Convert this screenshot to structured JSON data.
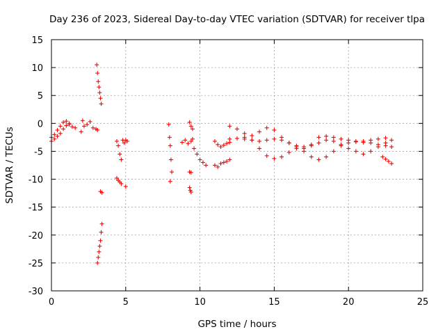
{
  "chart_data": {
    "type": "scatter",
    "title": "Day 236 of 2023, Sidereal Day-to-day VTEC variation (SDTVAR) for receiver tlpa",
    "xlabel": "GPS time / hours",
    "ylabel": "SDTVAR / TECUs",
    "xlim": [
      0,
      25
    ],
    "ylim": [
      -30,
      15
    ],
    "xticks": [
      0,
      5,
      10,
      15,
      20,
      25
    ],
    "yticks": [
      -30,
      -25,
      -20,
      -15,
      -10,
      -5,
      0,
      5,
      10,
      15
    ],
    "grid": true,
    "marker": "+",
    "color": "#ff0000",
    "series": [
      {
        "name": "SDTVAR",
        "segments": [
          {
            "x": [
              0.0,
              0.2,
              0.4,
              0.6,
              0.8,
              1.0,
              1.2,
              1.4,
              1.6
            ],
            "y": [
              -2.5,
              -2.0,
              -1.2,
              -0.5,
              0.2,
              0.4,
              0.0,
              -0.6,
              -0.8
            ]
          },
          {
            "x": [
              0.0,
              0.2,
              0.4,
              0.6,
              0.8,
              1.0,
              1.2
            ],
            "y": [
              -3.2,
              -2.8,
              -2.3,
              -1.8,
              -1.0,
              -0.4,
              -0.2
            ]
          },
          {
            "x": [
              2.0,
              2.1,
              2.2,
              2.4,
              2.6,
              2.8,
              3.0,
              3.1
            ],
            "y": [
              -1.5,
              0.5,
              -0.5,
              -0.2,
              0.3,
              -0.8,
              -1.0,
              -1.2
            ]
          },
          {
            "x": [
              3.05,
              3.1,
              3.15,
              3.2,
              3.25,
              3.3,
              3.35
            ],
            "y": [
              10.5,
              9.0,
              7.5,
              6.5,
              5.5,
              4.5,
              3.5
            ]
          },
          {
            "x": [
              3.1,
              3.15,
              3.2,
              3.25,
              3.3,
              3.35,
              3.4
            ],
            "y": [
              -25.0,
              -24.0,
              -23.0,
              -22.0,
              -21.0,
              -19.5,
              -18.0
            ]
          },
          {
            "x": [
              3.3,
              3.4
            ],
            "y": [
              -12.2,
              -12.4
            ]
          },
          {
            "x": [
              4.4,
              4.5,
              4.6,
              4.7,
              4.8
            ],
            "y": [
              -3.2,
              -4.0,
              -5.5,
              -6.5,
              -3.0
            ]
          },
          {
            "x": [
              4.4,
              4.5,
              4.6,
              4.7
            ],
            "y": [
              -9.8,
              -10.2,
              -10.5,
              -10.8
            ]
          },
          {
            "x": [
              4.9,
              5.0,
              5.1
            ],
            "y": [
              -3.5,
              -3.0,
              -3.2
            ]
          },
          {
            "x": [
              5.0
            ],
            "y": [
              -11.3
            ]
          },
          {
            "x": [
              7.9,
              7.95,
              8.0,
              8.05,
              8.1
            ],
            "y": [
              -0.2,
              -2.5,
              -4.0,
              -6.5,
              -8.7
            ]
          },
          {
            "x": [
              8.0
            ],
            "y": [
              -10.4
            ]
          },
          {
            "x": [
              8.8,
              9.0,
              9.2,
              9.4,
              9.5
            ],
            "y": [
              -3.4,
              -3.0,
              -3.6,
              -3.2,
              -2.8
            ]
          },
          {
            "x": [
              9.3,
              9.4,
              9.5
            ],
            "y": [
              0.2,
              -0.5,
              -1.0
            ]
          },
          {
            "x": [
              9.3,
              9.4
            ],
            "y": [
              -8.7,
              -8.8
            ]
          },
          {
            "x": [
              9.3,
              9.35,
              9.4
            ],
            "y": [
              -11.5,
              -12.0,
              -12.3
            ]
          },
          {
            "x": [
              9.6,
              9.8,
              10.0,
              10.2,
              10.4
            ],
            "y": [
              -4.5,
              -5.5,
              -6.5,
              -7.0,
              -7.5
            ]
          },
          {
            "x": [
              11.0,
              11.2,
              11.4,
              11.6,
              11.8,
              12.0
            ],
            "y": [
              -3.2,
              -3.8,
              -4.2,
              -3.9,
              -3.6,
              -3.4
            ]
          },
          {
            "x": [
              11.0,
              11.2,
              11.4,
              11.6,
              11.8,
              12.0
            ],
            "y": [
              -7.5,
              -7.8,
              -7.2,
              -7.0,
              -6.8,
              -6.5
            ]
          },
          {
            "x": [
              12.0,
              12.5,
              13.0,
              13.5,
              14.0,
              14.5,
              15.0,
              15.5,
              16.0,
              16.5,
              17.0,
              17.5,
              18.0,
              18.5,
              19.0,
              19.5,
              20.0,
              20.5,
              21.0,
              21.5,
              22.0,
              22.5,
              22.9
            ],
            "y": [
              -0.5,
              -1.0,
              -1.8,
              -2.2,
              -1.5,
              -0.8,
              -1.2,
              -2.5,
              -3.5,
              -4.2,
              -4.5,
              -4.0,
              -3.5,
              -3.0,
              -3.2,
              -3.8,
              -4.5,
              -5.0,
              -5.5,
              -5.0,
              -4.2,
              -3.5,
              -3.0
            ]
          },
          {
            "x": [
              12.0,
              12.5,
              13.0,
              13.5,
              14.0,
              14.5,
              15.0,
              15.5,
              16.0,
              16.5,
              17.0,
              17.5,
              18.0,
              18.5,
              19.0,
              19.5,
              20.0,
              20.5,
              21.0,
              21.5,
              22.0,
              22.5,
              22.9
            ],
            "y": [
              -2.8,
              -2.7,
              -2.8,
              -3.0,
              -4.5,
              -5.8,
              -6.3,
              -6.0,
              -5.2,
              -4.5,
              -4.2,
              -3.8,
              -2.5,
              -2.3,
              -2.5,
              -2.8,
              -3.0,
              -3.2,
              -3.4,
              -3.5,
              -3.8,
              -4.0,
              -4.2
            ]
          },
          {
            "x": [
              13.0,
              13.5,
              14.0,
              14.5,
              15.0,
              15.5,
              16.0,
              16.5,
              17.0,
              17.5,
              18.0,
              18.5,
              19.0,
              19.5,
              20.0,
              20.5,
              21.0,
              21.5,
              22.0,
              22.5
            ],
            "y": [
              -2.5,
              -3.0,
              -3.2,
              -3.0,
              -2.8,
              -3.0,
              -3.5,
              -4.0,
              -5.0,
              -6.0,
              -6.5,
              -6.0,
              -5.0,
              -4.0,
              -3.5,
              -3.3,
              -3.2,
              -3.0,
              -2.8,
              -2.6
            ]
          },
          {
            "x": [
              22.3,
              22.5,
              22.7,
              22.9
            ],
            "y": [
              -6.0,
              -6.4,
              -6.8,
              -7.2
            ]
          }
        ]
      }
    ]
  }
}
